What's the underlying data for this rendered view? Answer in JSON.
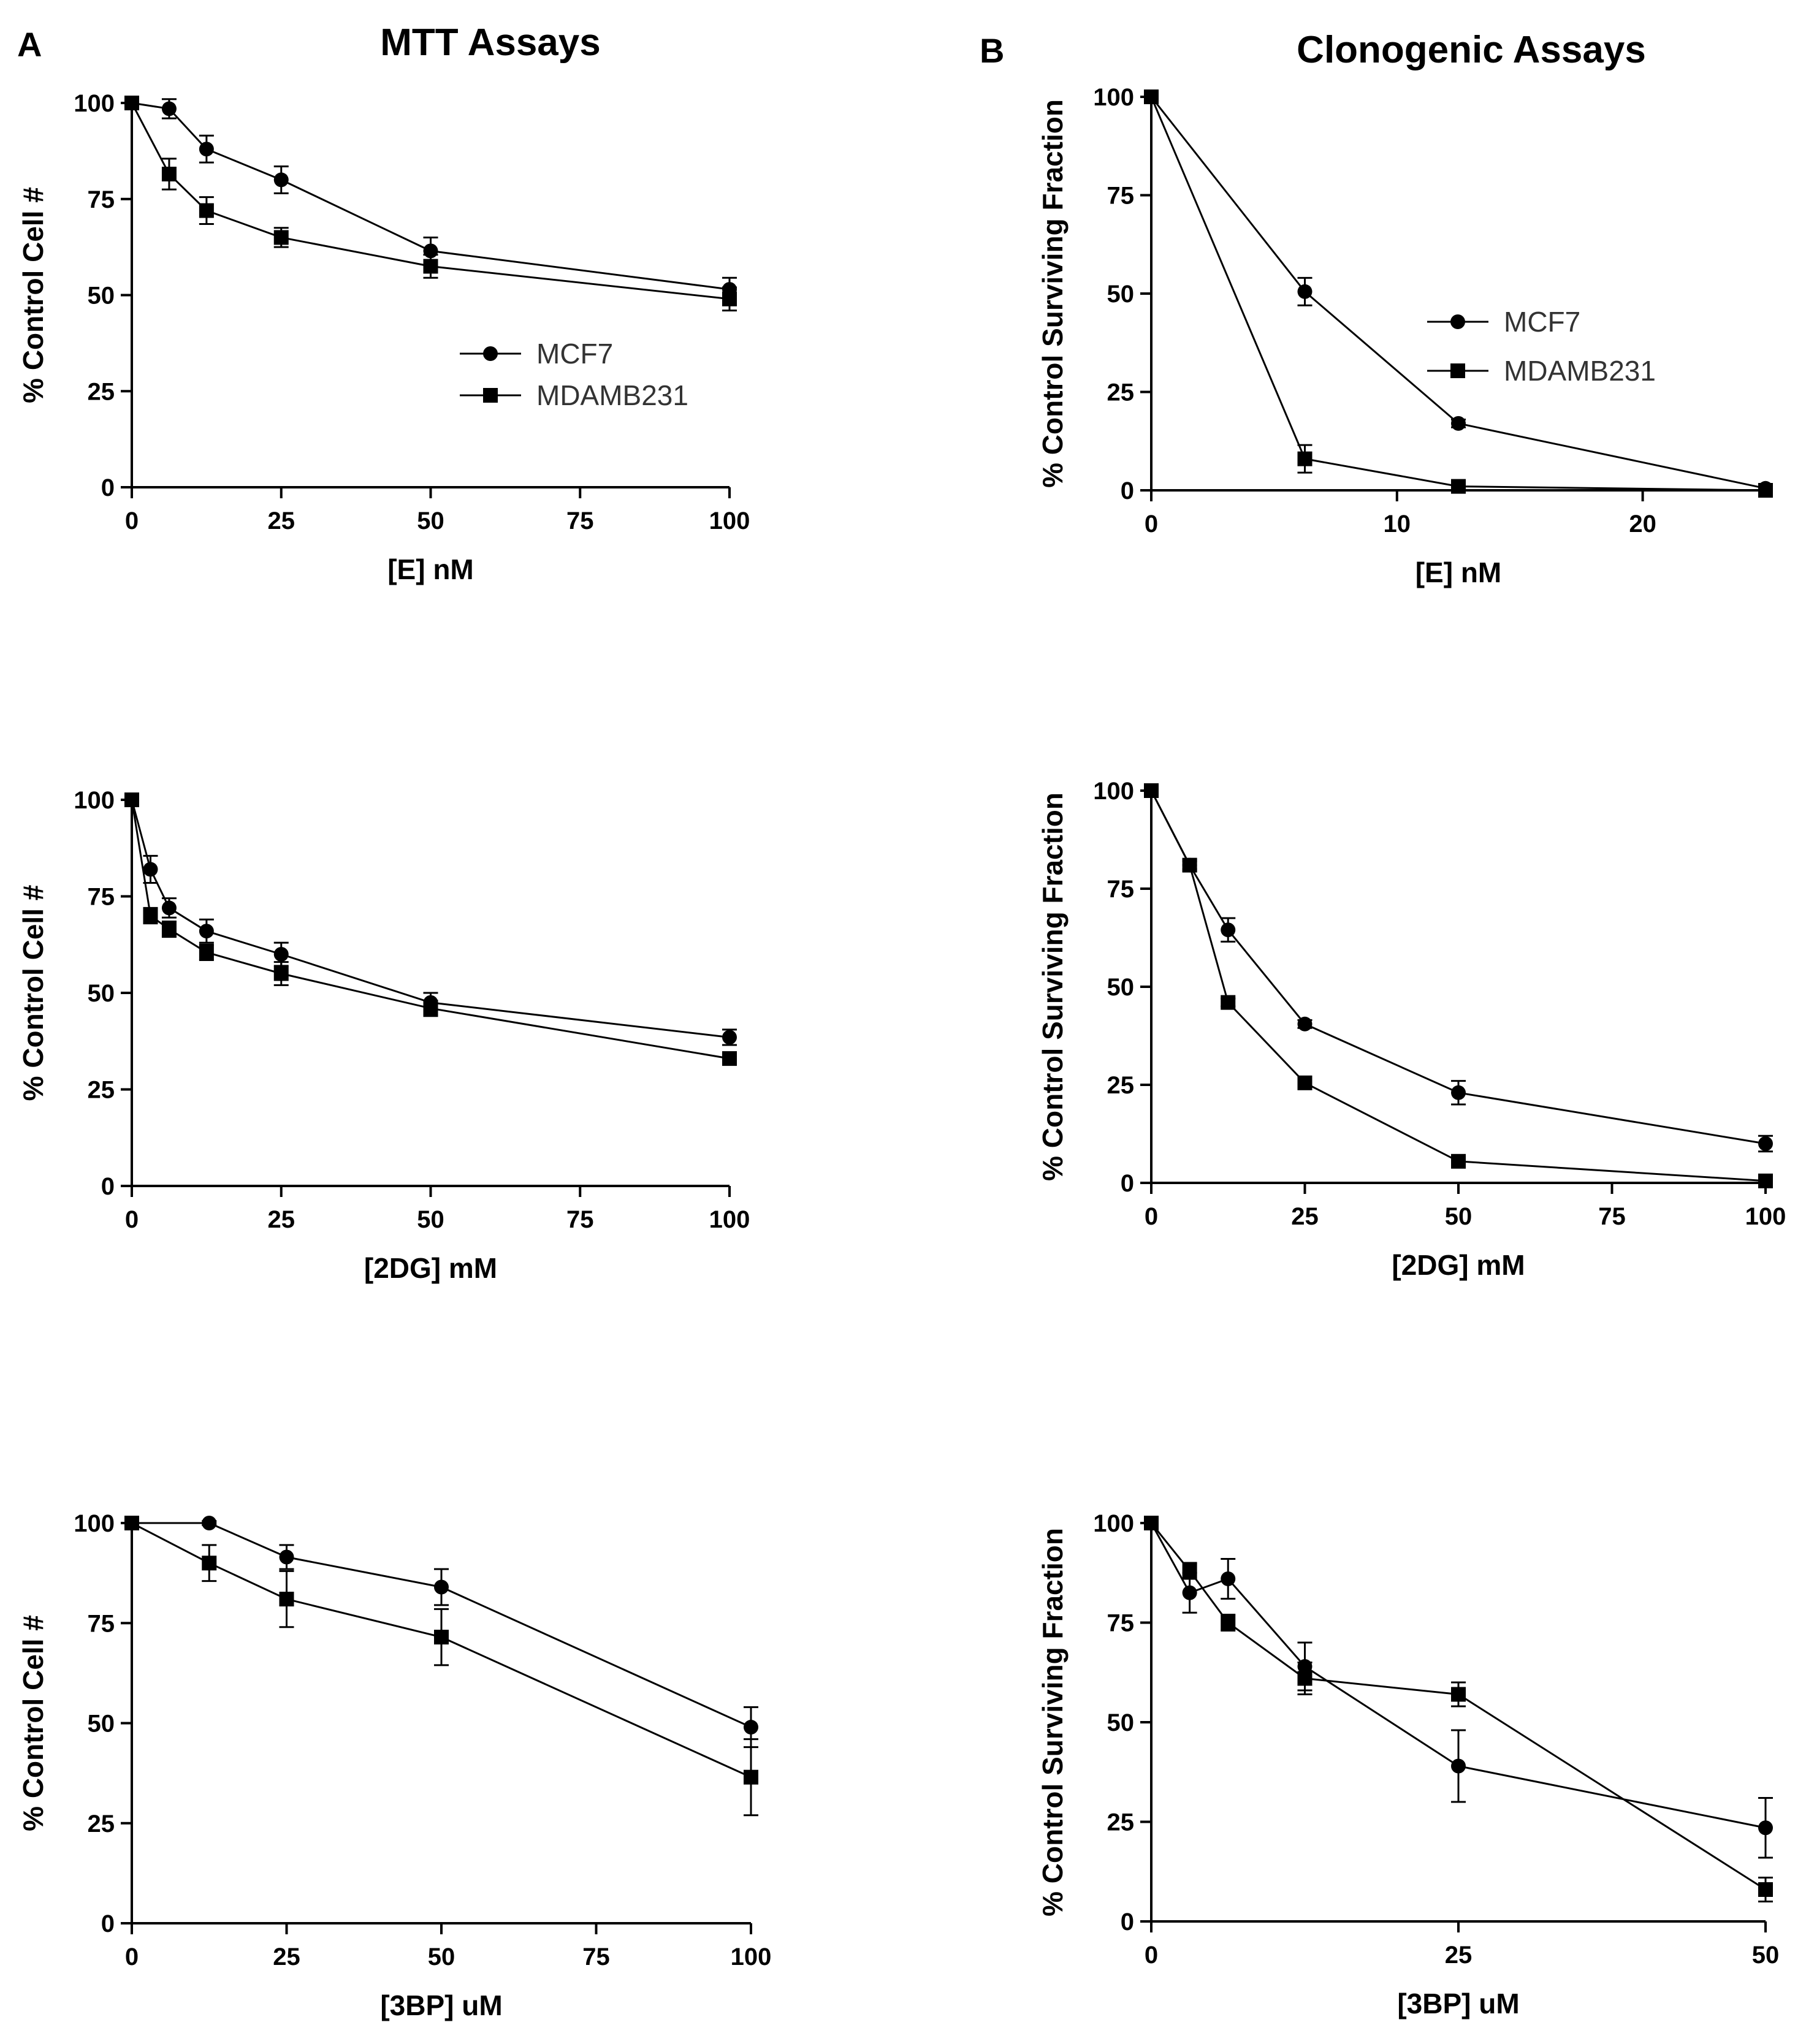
{
  "figure": {
    "panel_a_letter": "A",
    "panel_b_letter": "B",
    "panel_a_title": "MTT Assays",
    "panel_b_title": "Clonogenic Assays"
  },
  "legend": {
    "series": [
      "MCF7",
      "MDAMB231"
    ]
  },
  "chart_data": [
    {
      "id": "mtt_e",
      "type": "line",
      "xlabel": "[E] nM",
      "ylabel": "% Control Cell #",
      "xlim": [
        0,
        100
      ],
      "ylim": [
        0,
        100
      ],
      "xticks": [
        0,
        25,
        50,
        75,
        100
      ],
      "yticks": [
        0,
        25,
        50,
        75,
        100
      ],
      "legend": true,
      "series": [
        {
          "name": "MCF7",
          "marker": "circle",
          "x": [
            0,
            6.25,
            12.5,
            25,
            50,
            100
          ],
          "y": [
            100,
            98.5,
            88,
            80,
            61.5,
            51.5
          ],
          "err": [
            0,
            2.5,
            3.5,
            3.5,
            3.5,
            3
          ]
        },
        {
          "name": "MDAMB231",
          "marker": "square",
          "x": [
            0,
            6.25,
            12.5,
            25,
            50,
            100
          ],
          "y": [
            100,
            81.5,
            72,
            65,
            57.5,
            49
          ],
          "err": [
            0,
            4,
            3.5,
            2.5,
            3,
            3
          ]
        }
      ]
    },
    {
      "id": "clono_e",
      "type": "line",
      "xlabel": "[E] nM",
      "ylabel": "% Control Surviving Fraction",
      "xlim": [
        0,
        25
      ],
      "ylim": [
        0,
        100
      ],
      "xticks": [
        0,
        10,
        20
      ],
      "yticks": [
        0,
        25,
        50,
        75,
        100
      ],
      "legend": true,
      "series": [
        {
          "name": "MCF7",
          "marker": "circle",
          "x": [
            0,
            6.25,
            12.5,
            25
          ],
          "y": [
            100,
            50.5,
            17,
            0.5
          ],
          "err": [
            0,
            3.5,
            1,
            1
          ]
        },
        {
          "name": "MDAMB231",
          "marker": "square",
          "x": [
            0,
            6.25,
            12.5,
            25
          ],
          "y": [
            100,
            8,
            1,
            0
          ],
          "err": [
            0,
            3.5,
            0.5,
            0
          ]
        }
      ]
    },
    {
      "id": "mtt_2dg",
      "type": "line",
      "xlabel": "[2DG] mM",
      "ylabel": "% Control Cell #",
      "xlim": [
        0,
        100
      ],
      "ylim": [
        0,
        100
      ],
      "xticks": [
        0,
        25,
        50,
        75,
        100
      ],
      "yticks": [
        0,
        25,
        50,
        75,
        100
      ],
      "legend": false,
      "series": [
        {
          "name": "MCF7",
          "marker": "circle",
          "x": [
            0,
            3.125,
            6.25,
            12.5,
            25,
            50,
            100
          ],
          "y": [
            100,
            82,
            72,
            66,
            60,
            47.5,
            38.5
          ],
          "err": [
            0,
            3.5,
            2.5,
            3,
            3,
            2.5,
            2
          ]
        },
        {
          "name": "MDAMB231",
          "marker": "square",
          "x": [
            0,
            3.125,
            6.25,
            12.5,
            25,
            50,
            100
          ],
          "y": [
            100,
            70,
            66.5,
            60.5,
            55,
            46,
            33
          ],
          "err": [
            0,
            2,
            2,
            2,
            3,
            2,
            1.5
          ]
        }
      ]
    },
    {
      "id": "clono_2dg",
      "type": "line",
      "xlabel": "[2DG] mM",
      "ylabel": "% Control Surviving Fraction",
      "xlim": [
        0,
        100
      ],
      "ylim": [
        0,
        100
      ],
      "xticks": [
        0,
        25,
        50,
        75,
        100
      ],
      "yticks": [
        0,
        25,
        50,
        75,
        100
      ],
      "legend": false,
      "series": [
        {
          "name": "MCF7",
          "marker": "circle",
          "x": [
            0,
            6.25,
            12.5,
            25,
            50,
            100
          ],
          "y": [
            100,
            81,
            64.5,
            40.5,
            23,
            10
          ],
          "err": [
            0,
            1.5,
            3,
            1,
            3,
            2
          ]
        },
        {
          "name": "MDAMB231",
          "marker": "square",
          "x": [
            0,
            6.25,
            12.5,
            25,
            50,
            100
          ],
          "y": [
            100,
            81,
            46,
            25.5,
            5.5,
            0.5
          ],
          "err": [
            0,
            1,
            1,
            1,
            1,
            0.5
          ]
        }
      ]
    },
    {
      "id": "mtt_3bp",
      "type": "line",
      "xlabel": "[3BP] uM",
      "ylabel": "% Control Cell #",
      "xlim": [
        0,
        100
      ],
      "ylim": [
        0,
        100
      ],
      "xticks": [
        0,
        25,
        50,
        75,
        100
      ],
      "yticks": [
        0,
        25,
        50,
        75,
        100
      ],
      "legend": false,
      "series": [
        {
          "name": "MCF7",
          "marker": "circle",
          "x": [
            0,
            12.5,
            25,
            50,
            100
          ],
          "y": [
            100,
            100,
            91.5,
            84,
            49
          ],
          "err": [
            0,
            0.5,
            3,
            4.5,
            5
          ]
        },
        {
          "name": "MDAMB231",
          "marker": "square",
          "x": [
            0,
            12.5,
            25,
            50,
            100
          ],
          "y": [
            100,
            90,
            81,
            71.5,
            36.5
          ],
          "err": [
            0,
            4.5,
            7,
            7,
            9.5
          ]
        }
      ]
    },
    {
      "id": "clono_3bp",
      "type": "line",
      "xlabel": "[3BP] uM",
      "ylabel": "% Control Surviving Fraction",
      "xlim": [
        0,
        50
      ],
      "ylim": [
        0,
        100
      ],
      "xticks": [
        0,
        25,
        50
      ],
      "yticks": [
        0,
        25,
        50,
        75,
        100
      ],
      "legend": false,
      "series": [
        {
          "name": "MCF7",
          "marker": "circle",
          "x": [
            0,
            3.125,
            6.25,
            12.5,
            25,
            50
          ],
          "y": [
            100,
            82.5,
            86,
            64,
            39,
            23.5
          ],
          "err": [
            0,
            5,
            5,
            6,
            9,
            7.5
          ]
        },
        {
          "name": "MDAMB231",
          "marker": "square",
          "x": [
            0,
            3.125,
            6.25,
            12.5,
            25,
            50
          ],
          "y": [
            100,
            88,
            75,
            61,
            57,
            8
          ],
          "err": [
            0,
            2,
            2,
            4,
            3,
            3
          ]
        }
      ]
    }
  ]
}
